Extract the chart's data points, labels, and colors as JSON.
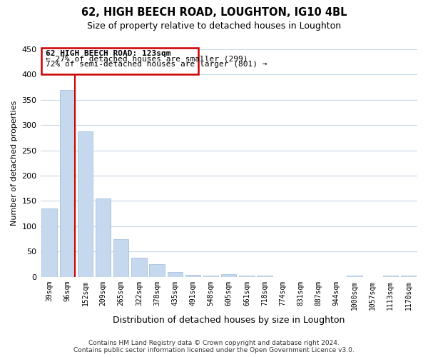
{
  "title": "62, HIGH BEECH ROAD, LOUGHTON, IG10 4BL",
  "subtitle": "Size of property relative to detached houses in Loughton",
  "xlabel": "Distribution of detached houses by size in Loughton",
  "ylabel": "Number of detached properties",
  "bar_color": "#c5d8ee",
  "bar_edge_color": "#9ab8d8",
  "highlight_color": "#cc0000",
  "categories": [
    "39sqm",
    "96sqm",
    "152sqm",
    "209sqm",
    "265sqm",
    "322sqm",
    "378sqm",
    "435sqm",
    "491sqm",
    "548sqm",
    "605sqm",
    "661sqm",
    "718sqm",
    "774sqm",
    "831sqm",
    "887sqm",
    "944sqm",
    "1000sqm",
    "1057sqm",
    "1113sqm",
    "1170sqm"
  ],
  "values": [
    135,
    370,
    288,
    155,
    75,
    38,
    25,
    10,
    4,
    2,
    5,
    2,
    3,
    0,
    0,
    0,
    0,
    3,
    0,
    2,
    3
  ],
  "highlight_bar_index": 1,
  "ylim": [
    0,
    450
  ],
  "yticks": [
    0,
    50,
    100,
    150,
    200,
    250,
    300,
    350,
    400,
    450
  ],
  "annotation_title": "62 HIGH BEECH ROAD: 123sqm",
  "annotation_line1": "← 27% of detached houses are smaller (299)",
  "annotation_line2": "72% of semi-detached houses are larger (801) →",
  "footer_line1": "Contains HM Land Registry data © Crown copyright and database right 2024.",
  "footer_line2": "Contains public sector information licensed under the Open Government Licence v3.0.",
  "grid_color": "#c8d8e8",
  "background_color": "#ffffff"
}
